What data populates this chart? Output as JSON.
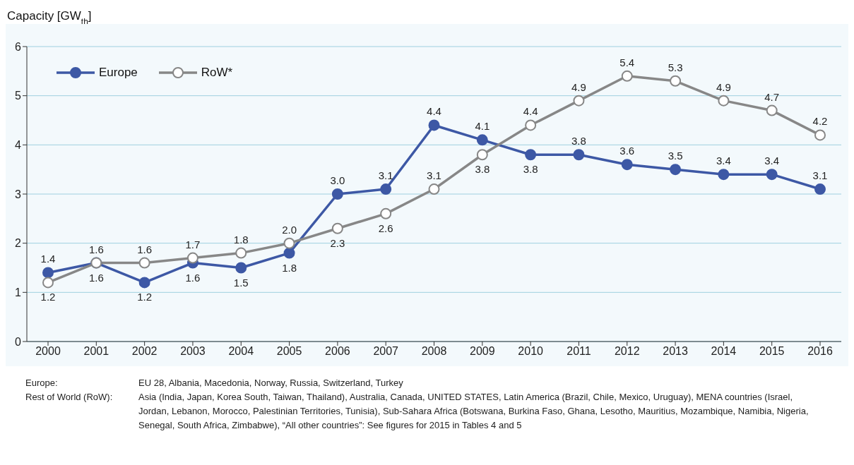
{
  "chart_data": {
    "type": "line",
    "ylabel": "Capacity [GW$_{th}$]",
    "categories": [
      "2000",
      "2001",
      "2002",
      "2003",
      "2004",
      "2005",
      "2006",
      "2007",
      "2008",
      "2009",
      "2010",
      "2011",
      "2012",
      "2013",
      "2014",
      "2015",
      "2016"
    ],
    "series": [
      {
        "name": "Europe",
        "color": "#3d58a5",
        "values": [
          1.4,
          1.6,
          1.2,
          1.6,
          1.5,
          1.8,
          3.0,
          3.1,
          4.4,
          4.1,
          3.8,
          3.8,
          3.6,
          3.5,
          3.4,
          3.4,
          3.1
        ],
        "value_labels": [
          "1.4",
          "1.6",
          "1.2",
          "1.6",
          "1.5",
          "1.8",
          "3.0",
          "3.1",
          "4.4",
          "4.1",
          "3.8",
          "3.8",
          "3.6",
          "3.5",
          "3.4",
          "3.4",
          "3.1"
        ],
        "marker": "circle"
      },
      {
        "name": "RoW*",
        "color": "#878787",
        "values": [
          1.2,
          1.6,
          1.6,
          1.7,
          1.8,
          2.0,
          2.3,
          2.6,
          3.1,
          3.8,
          4.4,
          4.9,
          5.4,
          5.3,
          4.9,
          4.7,
          4.2
        ],
        "value_labels": [
          "1.2",
          "1.6",
          "1.6",
          "1.7",
          "1.8",
          "2.0",
          "2.3",
          "2.6",
          "3.1",
          "3.8",
          "4.4",
          "4.9",
          "5.4",
          "5.3",
          "4.9",
          "4.7",
          "4.2"
        ],
        "marker": "circle"
      }
    ],
    "ylim": [
      0,
      6
    ],
    "yticks": [
      0,
      1,
      2,
      3,
      4,
      5,
      6
    ],
    "grid": "y",
    "legend": "top left",
    "line_style": "solid",
    "annotations": [
      "Europe:",
      "EU 28, Albania, Macedonia, Norway, Russia, Switzerland, Turkey",
      "Rest of World (RoW):",
      "Asia (India, Japan, Korea South, Taiwan, Thailand), Australia, Canada, UNITED STATES, Latin America (Brazil, Chile, Mexico, Uruguay), MENA countries (Israel, Jordan, Lebanon, Morocco, Palestinian Territories, Tunisia), Sub-Sahara Africa (Botswana, Burkina Faso, Ghana, Lesotho, Mauritius, Mozambique, Namibia, Nigeria, Senegal, South Africa, Zimbabwe), “All other countries”: See figures for 2015 in Tables 4 and 5"
    ]
  }
}
